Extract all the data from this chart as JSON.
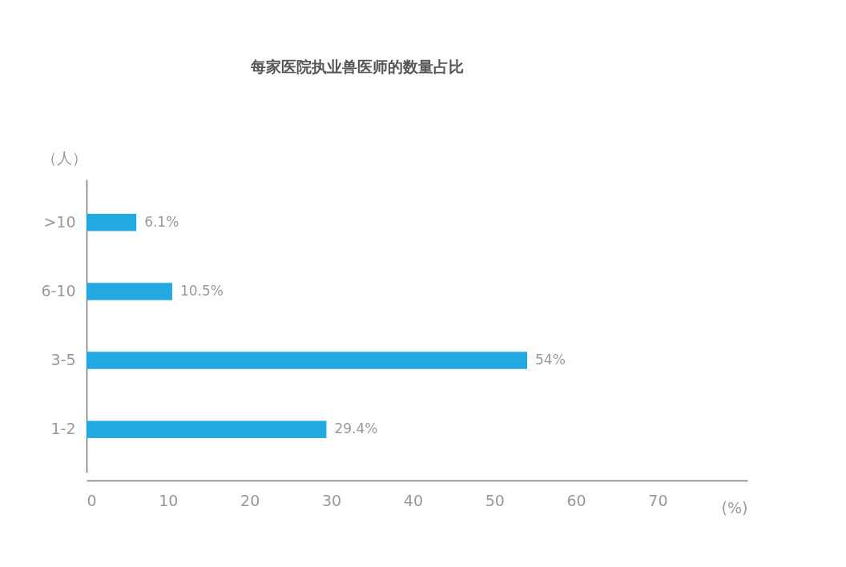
{
  "chart_data": {
    "type": "bar",
    "orientation": "horizontal",
    "title": "每家医院执业兽医师的数量占比",
    "xlabel": "(%)",
    "ylabel": "（人）",
    "categories": [
      ">10",
      "6-10",
      "3-5",
      "1-2"
    ],
    "values": [
      6.1,
      10.5,
      54,
      29.4
    ],
    "value_labels": [
      "6.1%",
      "10.5%",
      "54%",
      "29.4%"
    ],
    "color": "#23a9e1",
    "xlim": [
      0,
      81
    ],
    "xticks": [
      0,
      10,
      20,
      30,
      40,
      50,
      60,
      70
    ],
    "grid": false
  }
}
